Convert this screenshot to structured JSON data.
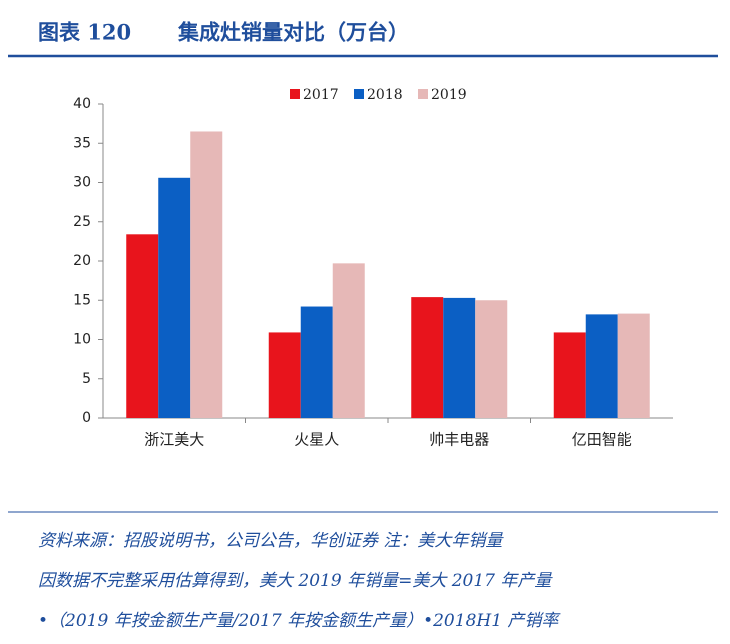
{
  "chart_data": {
    "type": "bar",
    "figure_label": "图表 120",
    "title": "集成灶销量对比（万台）",
    "categories": [
      "浙江美大",
      "火星人",
      "帅丰电器",
      "亿田智能"
    ],
    "series": [
      {
        "name": "2017",
        "color": "#e8141c",
        "values": [
          23.4,
          10.9,
          15.4,
          10.9
        ]
      },
      {
        "name": "2018",
        "color": "#0b5fc4",
        "values": [
          30.6,
          14.2,
          15.3,
          13.2
        ]
      },
      {
        "name": "2019",
        "color": "#e6b8b7",
        "values": [
          36.5,
          19.7,
          15.0,
          13.3
        ]
      }
    ],
    "ylim": [
      0,
      40
    ],
    "yticks": [
      0,
      5,
      10,
      15,
      20,
      25,
      30,
      35,
      40
    ],
    "legend": "top",
    "source": [
      "资料来源：招股说明书，公司公告，华创证券    注：美大年销量",
      "因数据不完整采用估算得到，美大 2019 年销量=美大 2017 年产量",
      "•（2019 年按金额生产量/2017 年按金额生产量）•2018H1 产销率"
    ]
  }
}
